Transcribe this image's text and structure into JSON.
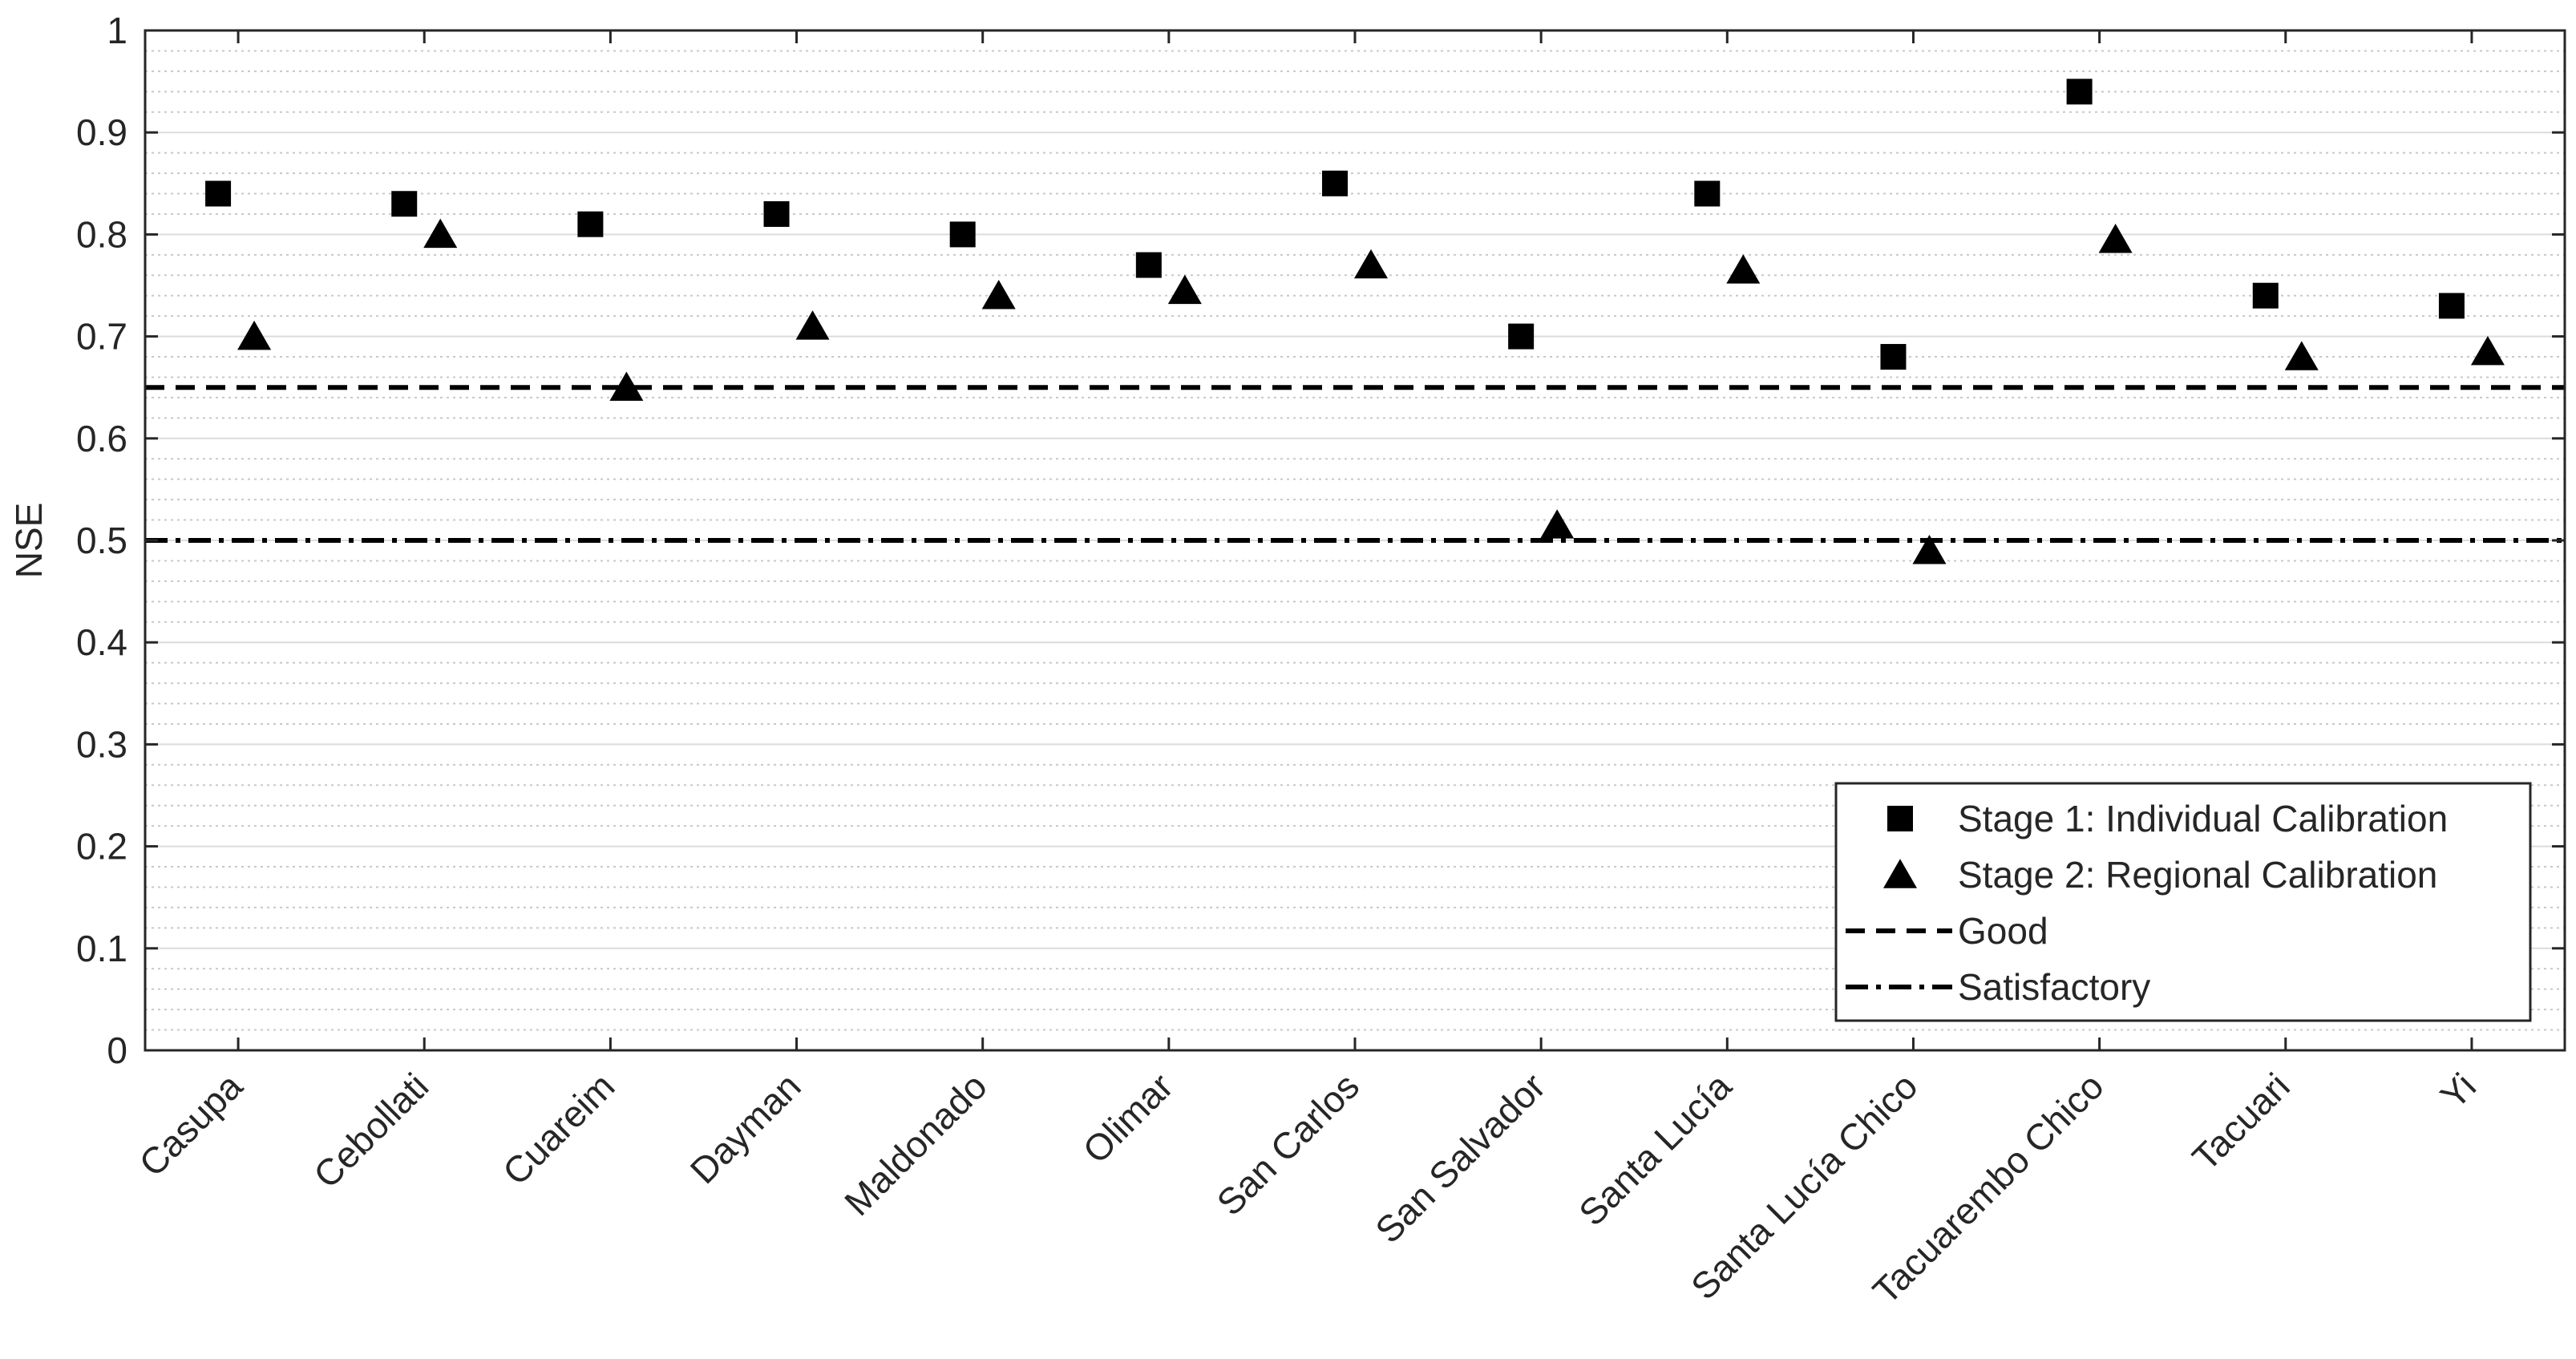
{
  "chart_data": {
    "type": "scatter",
    "title": "",
    "xlabel": "",
    "ylabel": "NSE",
    "ylim": [
      0,
      1
    ],
    "yticks": [
      "0",
      "0.1",
      "0.2",
      "0.3",
      "0.4",
      "0.5",
      "0.6",
      "0.7",
      "0.8",
      "0.9",
      "1"
    ],
    "grid": "major and minor horizontal",
    "categories": [
      "Casupa",
      "Cebollati",
      "Cuareim",
      "Dayman",
      "Maldonado",
      "Olimar",
      "San Carlos",
      "San Salvador",
      "Santa Lucía",
      "Santa Lucía Chico",
      "Tacuarembo Chico",
      "Tacuari",
      "Yi"
    ],
    "series": [
      {
        "name": "Stage 1: Individual Calibration",
        "marker": "square",
        "values": [
          0.84,
          0.83,
          0.81,
          0.82,
          0.8,
          0.77,
          0.85,
          0.7,
          0.84,
          0.68,
          0.94,
          0.74,
          0.73
        ]
      },
      {
        "name": "Stage 2: Regional Calibration",
        "marker": "triangle",
        "values": [
          0.7,
          0.8,
          0.65,
          0.71,
          0.74,
          0.745,
          0.77,
          0.515,
          0.765,
          0.49,
          0.795,
          0.68,
          0.685
        ]
      }
    ],
    "reference_lines": [
      {
        "name": "Good",
        "value": 0.65,
        "style": "dashed"
      },
      {
        "name": "Satisfactory",
        "value": 0.5,
        "style": "dash-dot"
      }
    ],
    "legend": {
      "placement": "bottom-right",
      "items": [
        "Stage 1: Individual Calibration",
        "Stage 2: Regional Calibration",
        "Good",
        "Satisfactory"
      ]
    }
  }
}
